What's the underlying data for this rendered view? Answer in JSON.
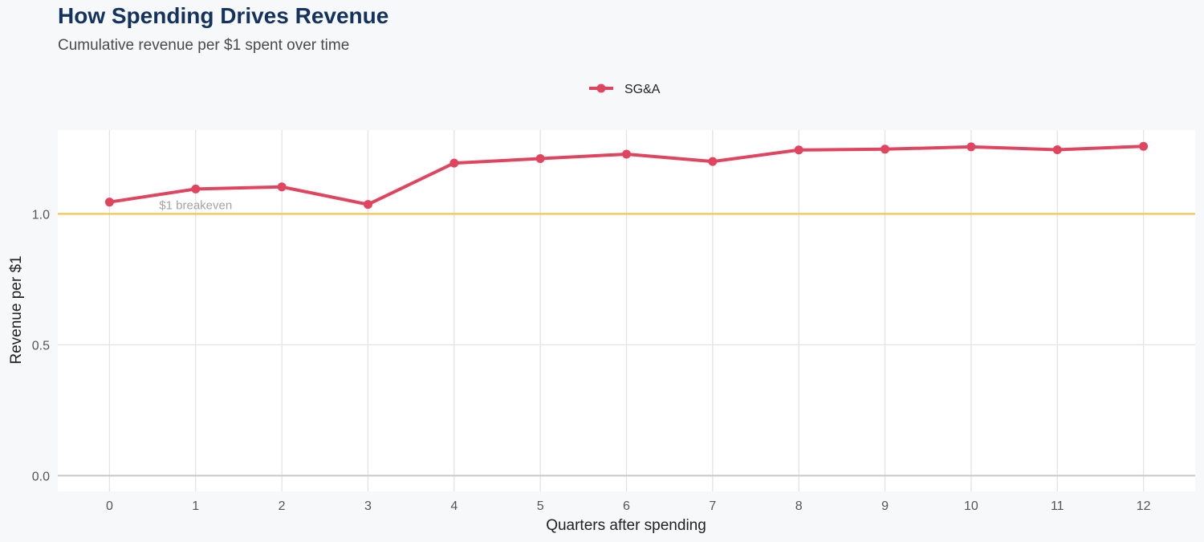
{
  "header": {
    "title": "How Spending Drives Revenue",
    "subtitle": "Cumulative revenue per $1 spent over time"
  },
  "colors": {
    "series": "#e0445e",
    "breakeven": "#f6c44f",
    "grid": "#e3e3e3",
    "panel": "#ffffff",
    "background": "#f7f8fa"
  },
  "chart_data": {
    "type": "line",
    "title": "How Spending Drives Revenue",
    "subtitle": "Cumulative revenue per $1 spent over time",
    "xlabel": "Quarters after spending",
    "ylabel": "Revenue per $1",
    "x": [
      0,
      1,
      2,
      3,
      4,
      5,
      6,
      7,
      8,
      9,
      10,
      11,
      12
    ],
    "series": [
      {
        "name": "SG&A",
        "color": "#e0445e",
        "values": [
          1.045,
          1.095,
          1.103,
          1.036,
          1.194,
          1.211,
          1.228,
          1.2,
          1.244,
          1.247,
          1.256,
          1.245,
          1.258
        ]
      }
    ],
    "yticks": [
      0.0,
      0.5,
      1.0
    ],
    "ytick_labels": [
      "0.0",
      "0.5",
      "1.0"
    ],
    "xticks": [
      0,
      1,
      2,
      3,
      4,
      5,
      6,
      7,
      8,
      9,
      10,
      11,
      12
    ],
    "xtick_labels": [
      "0",
      "1",
      "2",
      "3",
      "4",
      "5",
      "6",
      "7",
      "8",
      "9",
      "10",
      "11",
      "12"
    ],
    "ylim": [
      -0.06,
      1.32
    ],
    "xlim": [
      -0.6,
      12.6
    ],
    "grid": true,
    "legend": "top-center",
    "reference_line": {
      "y": 1.0,
      "label": "$1 breakeven",
      "label_x": 1.0
    }
  }
}
